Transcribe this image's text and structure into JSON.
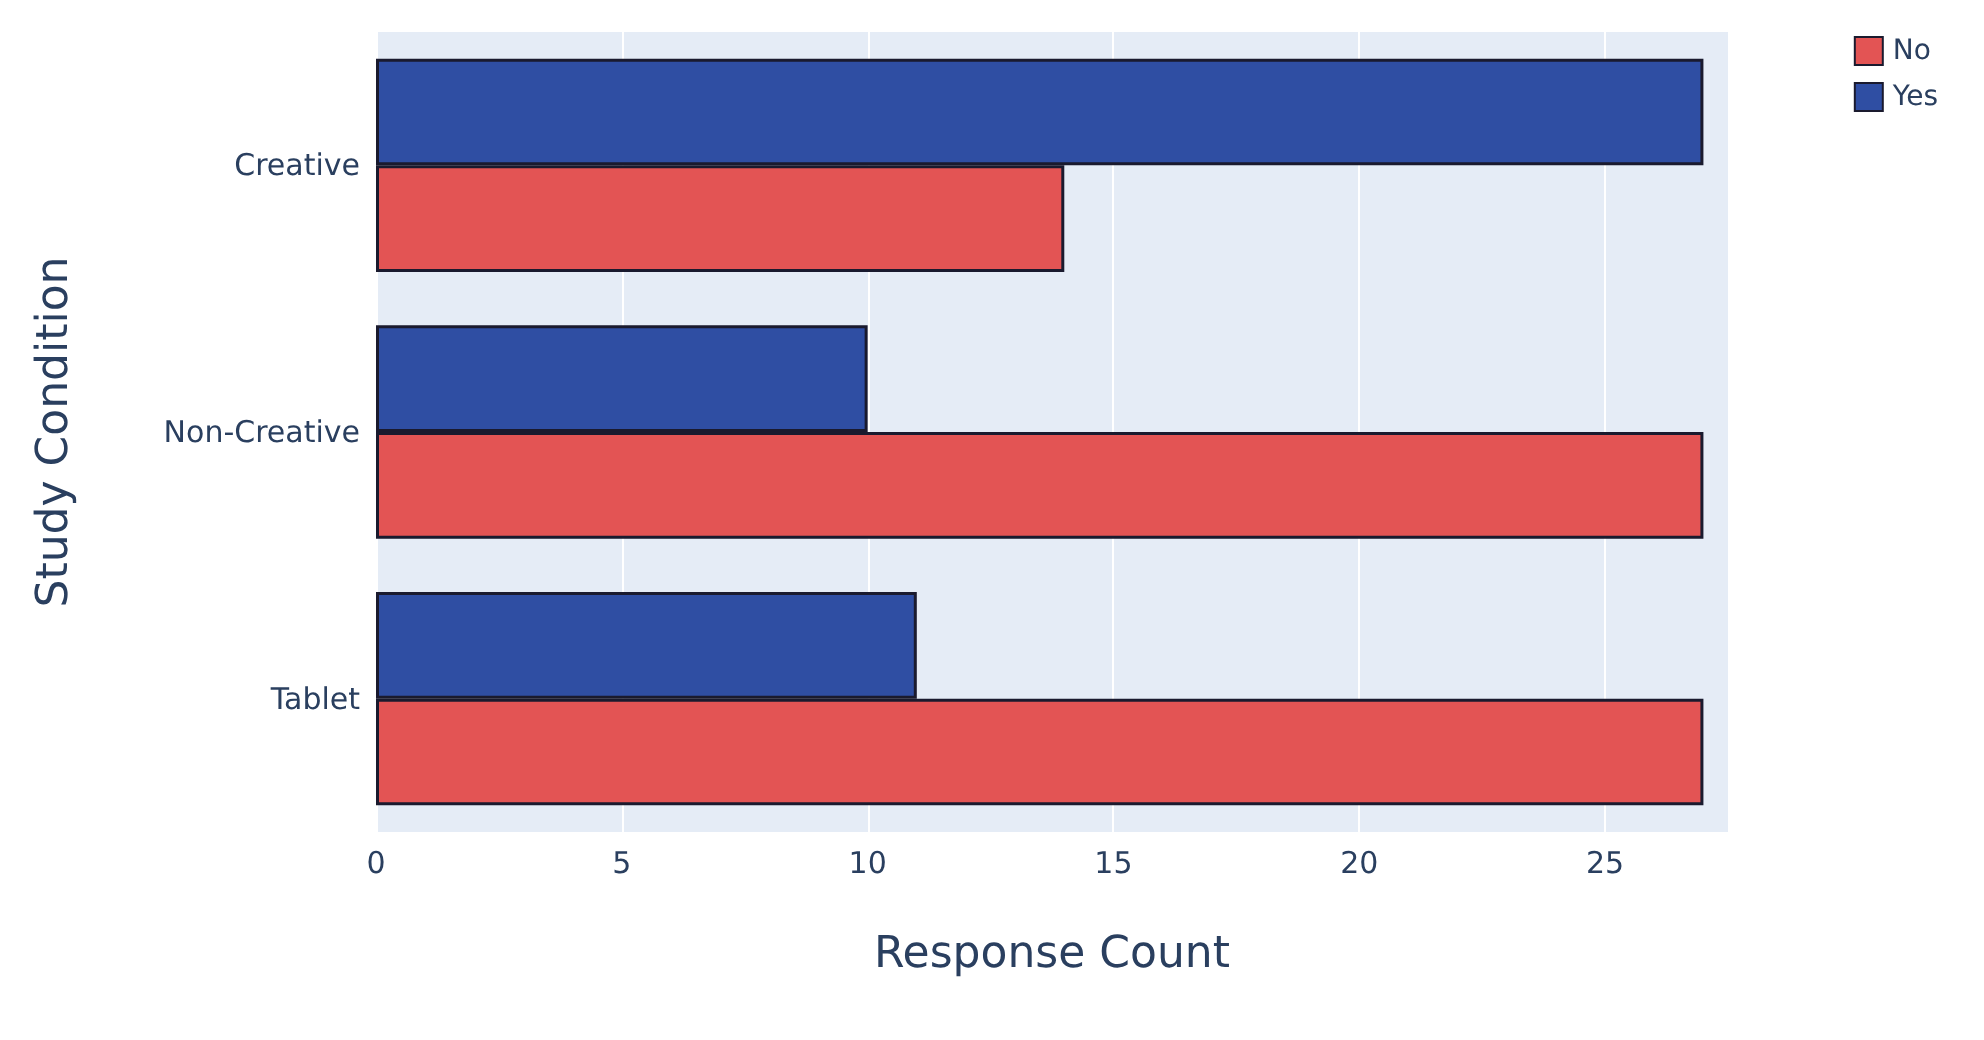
{
  "chart_data": {
    "type": "bar",
    "orientation": "horizontal",
    "xlabel": "Response Count",
    "ylabel": "Study Condition",
    "categories": [
      "Creative",
      "Non-Creative",
      "Tablet"
    ],
    "series": [
      {
        "name": "No",
        "color": "#e35454",
        "values": [
          14,
          27,
          27
        ]
      },
      {
        "name": "Yes",
        "color": "#2f4ea3",
        "values": [
          27,
          10,
          11
        ]
      }
    ],
    "xlim": [
      0,
      27.5
    ],
    "xticks": [
      0,
      5,
      10,
      15,
      20,
      25
    ],
    "grid": "x",
    "legend": "top right"
  }
}
